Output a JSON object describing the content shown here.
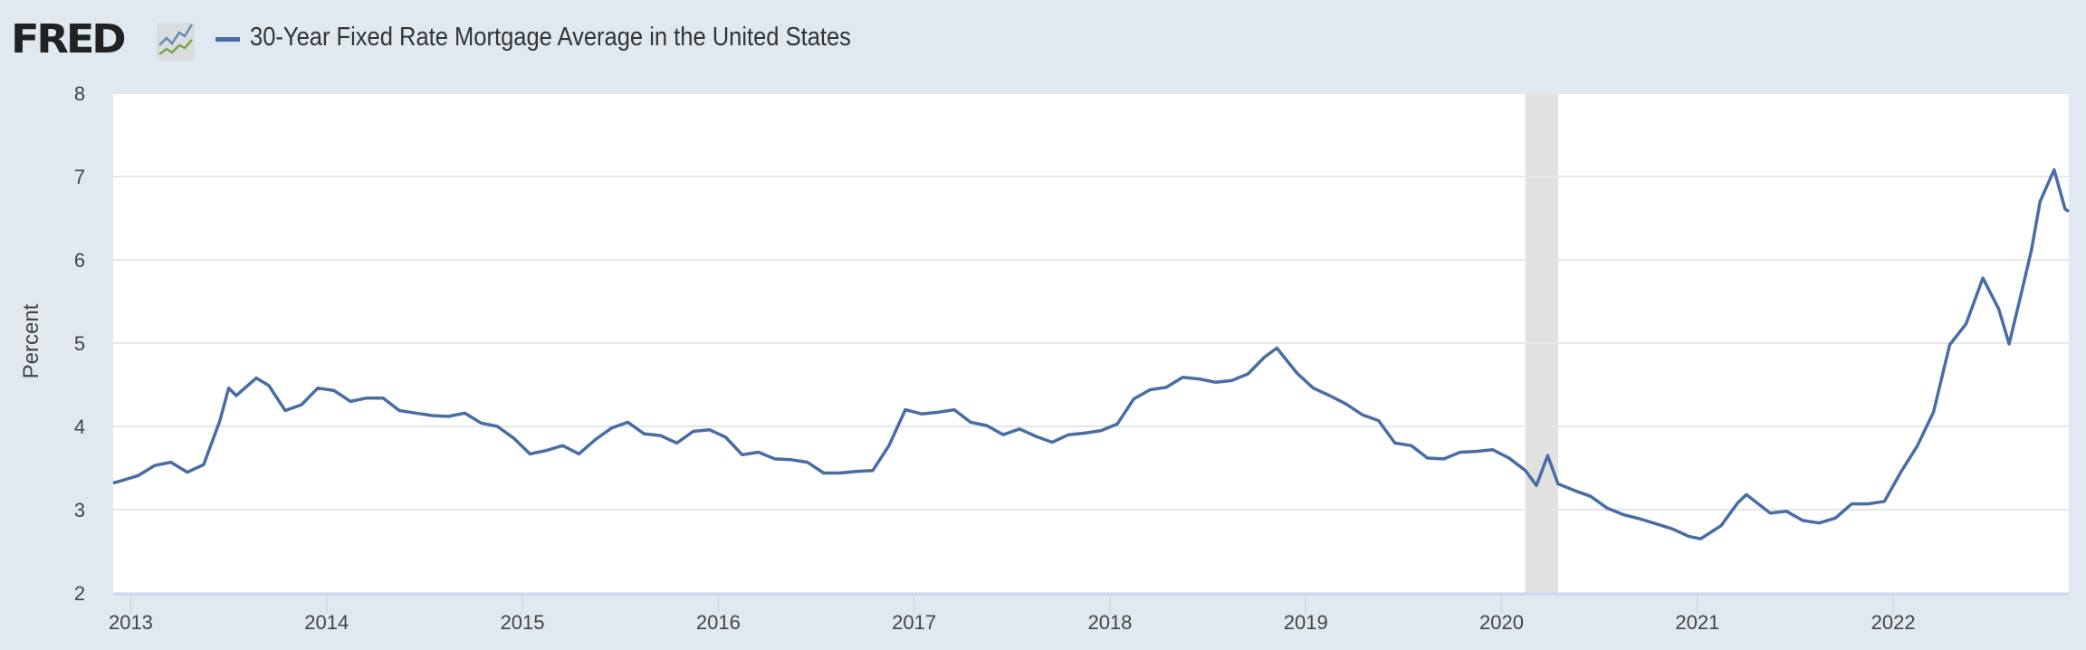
{
  "logo": {
    "text": "FRED"
  },
  "chart_data": {
    "type": "line",
    "title": "30-Year Fixed Rate Mortgage Average in the United States",
    "xlabel": "",
    "ylabel": "Percent",
    "ylim": [
      2,
      8
    ],
    "yticks": [
      "2",
      "3",
      "4",
      "5",
      "6",
      "7",
      "8"
    ],
    "xlim": [
      "2012-11-29",
      "2022-11-24"
    ],
    "xticks": [
      "2013",
      "2014",
      "2015",
      "2016",
      "2017",
      "2018",
      "2019",
      "2020",
      "2021",
      "2022"
    ],
    "grid": true,
    "legend": "top-left",
    "line_color": "#4a6ca4",
    "recession_shading": [
      [
        "2020-02-15",
        "2020-04-15"
      ]
    ],
    "series": [
      {
        "name": "30-Year Fixed Rate Mortgage Average in the United States",
        "dates": [
          "2012-11-29",
          "2012-12-15",
          "2013-01-15",
          "2013-02-15",
          "2013-03-15",
          "2013-04-15",
          "2013-05-15",
          "2013-06-15",
          "2013-07-01",
          "2013-07-15",
          "2013-08-22",
          "2013-09-15",
          "2013-10-15",
          "2013-11-15",
          "2013-12-15",
          "2014-01-15",
          "2014-02-15",
          "2014-03-15",
          "2014-04-15",
          "2014-05-15",
          "2014-06-15",
          "2014-07-15",
          "2014-08-15",
          "2014-09-15",
          "2014-10-15",
          "2014-11-15",
          "2014-12-15",
          "2015-01-15",
          "2015-02-15",
          "2015-03-15",
          "2015-04-15",
          "2015-05-15",
          "2015-06-15",
          "2015-07-15",
          "2015-08-15",
          "2015-09-15",
          "2015-10-15",
          "2015-11-15",
          "2015-12-15",
          "2016-01-15",
          "2016-02-15",
          "2016-03-15",
          "2016-04-15",
          "2016-05-15",
          "2016-06-15",
          "2016-07-15",
          "2016-08-15",
          "2016-09-15",
          "2016-10-15",
          "2016-11-15",
          "2016-12-15",
          "2017-01-15",
          "2017-02-15",
          "2017-03-15",
          "2017-04-15",
          "2017-05-15",
          "2017-06-15",
          "2017-07-15",
          "2017-08-15",
          "2017-09-15",
          "2017-10-15",
          "2017-11-15",
          "2017-12-15",
          "2018-01-15",
          "2018-02-15",
          "2018-03-15",
          "2018-04-15",
          "2018-05-15",
          "2018-06-15",
          "2018-07-15",
          "2018-08-15",
          "2018-09-15",
          "2018-10-15",
          "2018-11-08",
          "2018-12-15",
          "2019-01-15",
          "2019-02-15",
          "2019-03-15",
          "2019-04-15",
          "2019-05-15",
          "2019-06-15",
          "2019-07-15",
          "2019-08-15",
          "2019-09-15",
          "2019-10-15",
          "2019-11-15",
          "2019-12-15",
          "2020-01-15",
          "2020-02-15",
          "2020-03-05",
          "2020-03-26",
          "2020-04-15",
          "2020-05-15",
          "2020-06-15",
          "2020-07-15",
          "2020-08-15",
          "2020-09-15",
          "2020-10-15",
          "2020-11-15",
          "2020-12-15",
          "2021-01-07",
          "2021-02-15",
          "2021-03-15",
          "2021-04-01",
          "2021-05-15",
          "2021-06-15",
          "2021-07-15",
          "2021-08-15",
          "2021-09-15",
          "2021-10-15",
          "2021-11-15",
          "2021-12-15",
          "2022-01-15",
          "2022-02-15",
          "2022-03-15",
          "2022-04-15",
          "2022-05-15",
          "2022-06-16",
          "2022-07-15",
          "2022-08-04",
          "2022-08-25",
          "2022-09-15",
          "2022-10-01",
          "2022-10-27",
          "2022-11-17",
          "2022-11-24"
        ],
        "values": [
          3.32,
          3.35,
          3.41,
          3.53,
          3.57,
          3.45,
          3.54,
          4.07,
          4.46,
          4.37,
          4.58,
          4.49,
          4.19,
          4.26,
          4.46,
          4.43,
          4.3,
          4.34,
          4.34,
          4.19,
          4.16,
          4.13,
          4.12,
          4.16,
          4.04,
          4.0,
          3.86,
          3.67,
          3.71,
          3.77,
          3.67,
          3.84,
          3.98,
          4.05,
          3.91,
          3.89,
          3.8,
          3.94,
          3.96,
          3.87,
          3.66,
          3.69,
          3.61,
          3.6,
          3.57,
          3.44,
          3.44,
          3.46,
          3.47,
          3.77,
          4.2,
          4.15,
          4.17,
          4.2,
          4.05,
          4.01,
          3.9,
          3.97,
          3.88,
          3.81,
          3.9,
          3.92,
          3.95,
          4.03,
          4.33,
          4.44,
          4.47,
          4.59,
          4.57,
          4.53,
          4.55,
          4.63,
          4.83,
          4.94,
          4.64,
          4.46,
          4.37,
          4.27,
          4.14,
          4.07,
          3.8,
          3.77,
          3.62,
          3.61,
          3.69,
          3.7,
          3.72,
          3.62,
          3.47,
          3.29,
          3.65,
          3.31,
          3.23,
          3.16,
          3.02,
          2.94,
          2.89,
          2.83,
          2.77,
          2.68,
          2.65,
          2.81,
          3.08,
          3.18,
          2.96,
          2.98,
          2.87,
          2.84,
          2.9,
          3.07,
          3.07,
          3.1,
          3.45,
          3.76,
          4.17,
          4.98,
          5.23,
          5.78,
          5.41,
          4.99,
          5.55,
          6.11,
          6.7,
          7.08,
          6.61,
          6.58
        ]
      }
    ]
  }
}
